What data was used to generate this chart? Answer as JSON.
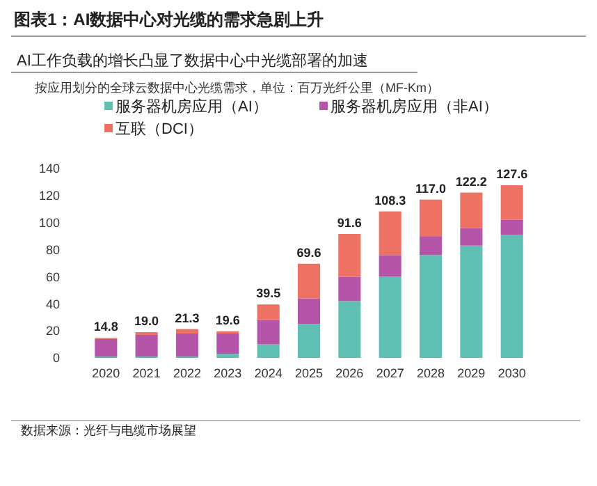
{
  "chart_data": {
    "type": "bar",
    "stacked": true,
    "title": "图表1：AI数据中心对光缆的需求急剧上升",
    "subtitle": "AI工作负载的增长凸显了数据中心中光缆部署的加速",
    "categories": [
      "2020",
      "2021",
      "2022",
      "2023",
      "2024",
      "2025",
      "2026",
      "2027",
      "2028",
      "2029",
      "2030"
    ],
    "series": [
      {
        "name": "服务器机房应用（AI）",
        "color": "#5fbfb3",
        "values": [
          1,
          1,
          1,
          3,
          10,
          25,
          42,
          60,
          76,
          83,
          91
        ]
      },
      {
        "name": "服务器机房应用（非AI）",
        "color": "#b555a9",
        "values": [
          13,
          16,
          17,
          15,
          18,
          19,
          18,
          16,
          14,
          13,
          11
        ]
      },
      {
        "name": "互联（DCI）",
        "color": "#ee7264",
        "values": [
          0.8,
          2,
          3.3,
          1.6,
          11.5,
          25.6,
          31.6,
          32.3,
          27,
          26.2,
          25.6
        ]
      }
    ],
    "totals": [
      "14.8",
      "19.0",
      "21.3",
      "19.6",
      "39.5",
      "69.6",
      "91.6",
      "108.3",
      "117.0",
      "122.2",
      "127.6"
    ],
    "ylim": [
      0,
      140
    ],
    "yticks": [
      0,
      20,
      40,
      60,
      80,
      100,
      120,
      140
    ],
    "grid": false,
    "legend": "top",
    "annotations": [
      "按应用划分的全球云数据中心光缆需求，单位：百万光纤公里（MF-Km）",
      "数据来源：光纤与电缆市场展望"
    ]
  }
}
